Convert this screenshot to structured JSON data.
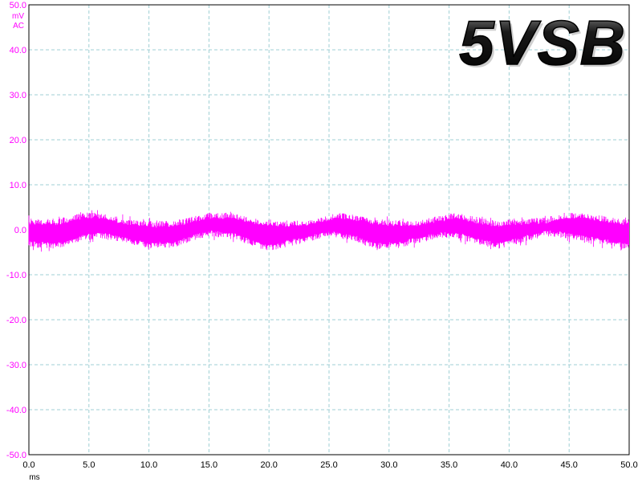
{
  "chart_data": {
    "type": "line",
    "title": "5VSB",
    "x_unit": "ms",
    "y_unit": "mV",
    "coupling": "AC",
    "xlim": [
      0,
      50
    ],
    "ylim": [
      -50,
      50
    ],
    "x_ticks": [
      "0.0",
      "5.0",
      "10.0",
      "15.0",
      "20.0",
      "25.0",
      "30.0",
      "35.0",
      "40.0",
      "45.0",
      "50.0"
    ],
    "y_ticks": [
      "50.0",
      "40.0",
      "30.0",
      "20.0",
      "10.0",
      "0.0",
      "-10.0",
      "-20.0",
      "-30.0",
      "-40.0",
      "-50.0"
    ],
    "grid": true,
    "series": [
      {
        "color": "#ff00ff",
        "envelope_upper": [
          [
            0,
            2.5
          ],
          [
            2.5,
            2.5
          ],
          [
            4.5,
            3.8
          ],
          [
            6,
            3.8
          ],
          [
            8,
            2.5
          ],
          [
            11,
            1.8
          ],
          [
            13,
            2.5
          ],
          [
            15,
            3.8
          ],
          [
            17,
            3.8
          ],
          [
            19,
            2.5
          ],
          [
            22,
            2.0
          ],
          [
            24,
            2.5
          ],
          [
            25.5,
            3.8
          ],
          [
            27,
            3.5
          ],
          [
            29,
            2.5
          ],
          [
            32,
            2.0
          ],
          [
            34,
            3.0
          ],
          [
            35.5,
            3.8
          ],
          [
            37,
            3.0
          ],
          [
            39,
            2.0
          ],
          [
            41,
            2.5
          ],
          [
            43,
            2.8
          ],
          [
            45,
            3.8
          ],
          [
            47,
            3.5
          ],
          [
            49,
            2.5
          ],
          [
            50,
            2.3
          ]
        ],
        "envelope_lower": [
          [
            0,
            -4.0
          ],
          [
            2.5,
            -4.2
          ],
          [
            4.5,
            -2.5
          ],
          [
            6,
            -2.0
          ],
          [
            8,
            -3.0
          ],
          [
            10,
            -4.2
          ],
          [
            12,
            -4.0
          ],
          [
            15,
            -1.5
          ],
          [
            17,
            -2.0
          ],
          [
            19,
            -4.0
          ],
          [
            20,
            -4.8
          ],
          [
            22,
            -3.5
          ],
          [
            25,
            -1.5
          ],
          [
            27,
            -2.5
          ],
          [
            29,
            -4.3
          ],
          [
            31,
            -4.0
          ],
          [
            34,
            -2.0
          ],
          [
            35.5,
            -1.8
          ],
          [
            37,
            -3.0
          ],
          [
            39,
            -4.3
          ],
          [
            41,
            -3.0
          ],
          [
            43,
            -1.5
          ],
          [
            45,
            -2.0
          ],
          [
            47,
            -3.0
          ],
          [
            49,
            -4.0
          ],
          [
            50,
            -4.5
          ]
        ]
      }
    ]
  }
}
